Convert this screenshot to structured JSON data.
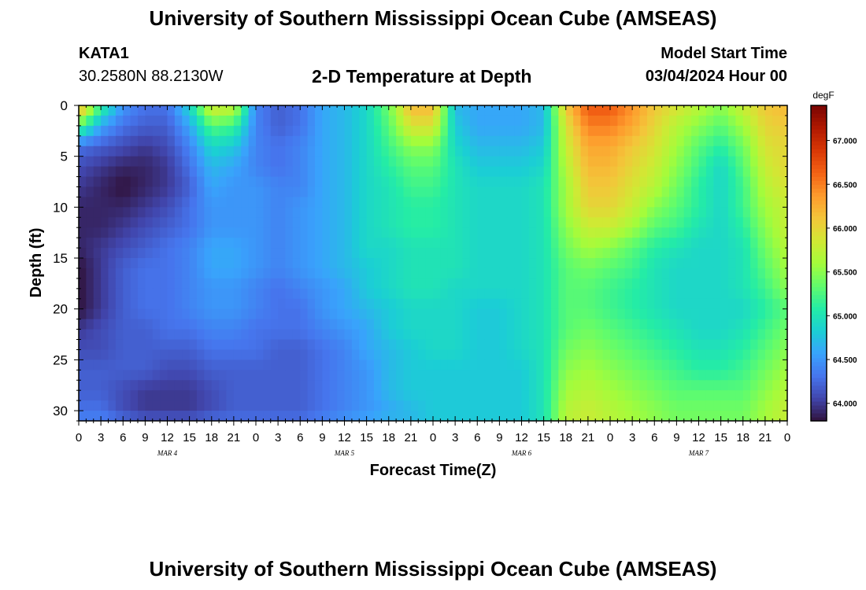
{
  "header": {
    "title": "University of Southern Mississippi Ocean Cube (AMSEAS)",
    "station_id": "KATA1",
    "station_coords": "30.2580N  88.2130W",
    "plot_title": "2-D Temperature at Depth",
    "start_label": "Model Start Time",
    "start_value": "03/04/2024 Hour 00"
  },
  "footer": {
    "title": "University of Southern Mississippi Ocean Cube (AMSEAS)"
  },
  "chart_data": {
    "type": "heatmap",
    "title": "2-D Temperature at Depth",
    "xlabel": "Forecast Time(Z)",
    "ylabel": "Depth (ft)",
    "x_range_hours": [
      0,
      96
    ],
    "y_range_ft": [
      0,
      31
    ],
    "y_reversed": true,
    "x_ticks": [
      "0",
      "3",
      "6",
      "9",
      "12",
      "15",
      "18",
      "21",
      "0",
      "3",
      "6",
      "9",
      "12",
      "15",
      "18",
      "21",
      "0",
      "3",
      "6",
      "9",
      "12",
      "15",
      "18",
      "21",
      "0",
      "3",
      "6",
      "9",
      "12",
      "15",
      "18",
      "21",
      "0"
    ],
    "day_labels": [
      {
        "label": "MAR 4",
        "hour": 12
      },
      {
        "label": "MAR 5",
        "hour": 36
      },
      {
        "label": "MAR 6",
        "hour": 60
      },
      {
        "label": "MAR 7",
        "hour": 84
      }
    ],
    "y_ticks": [
      "0",
      "5",
      "10",
      "15",
      "20",
      "25",
      "30"
    ],
    "colorbar": {
      "unit": "degF",
      "min": 63.8,
      "max": 67.4,
      "ticks": [
        "64.000",
        "64.500",
        "65.000",
        "65.500",
        "66.000",
        "66.500",
        "67.000"
      ],
      "colormap": [
        "#30123b",
        "#4145ab",
        "#4675ed",
        "#39a2fc",
        "#1bcfd4",
        "#24eca6",
        "#61fc6c",
        "#a4fc3b",
        "#d1e834",
        "#f3c63a",
        "#fe9b2d",
        "#f36315",
        "#d93806",
        "#b11901",
        "#7a0402"
      ]
    },
    "hours": [
      0,
      3,
      6,
      9,
      12,
      15,
      18,
      21,
      24,
      27,
      30,
      33,
      36,
      39,
      42,
      45,
      48,
      51,
      54,
      57,
      60,
      63,
      66,
      69,
      72,
      75,
      78,
      81,
      84,
      87,
      90,
      93,
      96
    ],
    "depths_ft": [
      0,
      2,
      4,
      6,
      8,
      10,
      12,
      14,
      16,
      18,
      20,
      22,
      24,
      26,
      28,
      30,
      31
    ],
    "values": [
      [
        66.4,
        65.2,
        64.5,
        64.3,
        64.3,
        64.9,
        65.9,
        65.8,
        64.4,
        64.2,
        64.3,
        64.6,
        64.7,
        64.9,
        65.4,
        66.2,
        66.2,
        64.7,
        64.6,
        64.6,
        64.6,
        64.7,
        66.1,
        66.7,
        66.7,
        66.4,
        66.1,
        65.9,
        65.7,
        65.5,
        65.8,
        66.1,
        66.2
      ],
      [
        65.3,
        64.6,
        64.3,
        64.2,
        64.2,
        64.6,
        65.3,
        65.2,
        64.4,
        64.2,
        64.3,
        64.6,
        64.7,
        64.9,
        65.3,
        65.9,
        65.9,
        64.8,
        64.6,
        64.6,
        64.6,
        64.7,
        65.9,
        66.5,
        66.5,
        66.3,
        66.0,
        65.7,
        65.5,
        65.3,
        65.6,
        66.0,
        66.1
      ],
      [
        64.3,
        64.2,
        64.1,
        64.0,
        64.1,
        64.4,
        64.9,
        64.8,
        64.4,
        64.3,
        64.4,
        64.6,
        64.7,
        64.9,
        65.2,
        65.5,
        65.5,
        64.9,
        64.7,
        64.7,
        64.7,
        64.8,
        65.8,
        66.3,
        66.3,
        66.1,
        65.9,
        65.6,
        65.3,
        65.1,
        65.4,
        65.9,
        66.0
      ],
      [
        64.1,
        64.0,
        63.9,
        63.9,
        64.0,
        64.3,
        64.7,
        64.6,
        64.4,
        64.3,
        64.4,
        64.6,
        64.7,
        64.9,
        65.1,
        65.3,
        65.3,
        65.0,
        64.8,
        64.8,
        64.8,
        64.9,
        65.7,
        66.2,
        66.2,
        66.0,
        65.8,
        65.5,
        65.2,
        64.9,
        65.3,
        65.8,
        66.0
      ],
      [
        64.0,
        63.9,
        63.8,
        63.9,
        64.0,
        64.2,
        64.6,
        64.5,
        64.5,
        64.4,
        64.4,
        64.6,
        64.7,
        64.9,
        65.0,
        65.2,
        65.2,
        65.0,
        64.9,
        64.9,
        64.9,
        65.0,
        65.6,
        66.1,
        66.1,
        65.9,
        65.7,
        65.4,
        65.1,
        64.9,
        65.2,
        65.7,
        65.9
      ],
      [
        63.9,
        63.9,
        63.9,
        64.0,
        64.1,
        64.3,
        64.5,
        64.5,
        64.5,
        64.4,
        64.5,
        64.6,
        64.7,
        64.9,
        65.0,
        65.1,
        65.1,
        65.0,
        64.9,
        64.9,
        64.9,
        65.0,
        65.6,
        66.0,
        66.0,
        65.8,
        65.5,
        65.3,
        65.1,
        64.9,
        65.2,
        65.6,
        65.8
      ],
      [
        63.9,
        63.9,
        64.0,
        64.1,
        64.2,
        64.3,
        64.5,
        64.5,
        64.5,
        64.4,
        64.5,
        64.6,
        64.7,
        64.9,
        65.0,
        65.1,
        65.1,
        65.0,
        64.9,
        64.9,
        64.9,
        65.0,
        65.5,
        65.8,
        65.8,
        65.6,
        65.3,
        65.2,
        65.0,
        64.9,
        65.1,
        65.5,
        65.8
      ],
      [
        63.9,
        64.0,
        64.1,
        64.2,
        64.3,
        64.4,
        64.6,
        64.6,
        64.5,
        64.4,
        64.5,
        64.6,
        64.7,
        64.9,
        64.9,
        65.0,
        65.0,
        65.0,
        64.9,
        64.9,
        64.9,
        65.0,
        65.4,
        65.6,
        65.5,
        65.3,
        65.1,
        65.0,
        64.9,
        64.9,
        65.0,
        65.4,
        65.7
      ],
      [
        63.8,
        64.0,
        64.2,
        64.3,
        64.3,
        64.4,
        64.6,
        64.6,
        64.5,
        64.4,
        64.5,
        64.6,
        64.7,
        64.8,
        64.9,
        65.0,
        65.0,
        65.0,
        64.9,
        64.9,
        64.9,
        65.0,
        65.3,
        65.4,
        65.3,
        65.2,
        65.0,
        64.9,
        64.9,
        64.9,
        65.0,
        65.3,
        65.6
      ],
      [
        63.8,
        64.0,
        64.2,
        64.3,
        64.3,
        64.4,
        64.5,
        64.5,
        64.4,
        64.3,
        64.4,
        64.5,
        64.6,
        64.8,
        64.9,
        65.0,
        65.0,
        64.9,
        64.9,
        64.9,
        64.9,
        65.0,
        65.3,
        65.3,
        65.2,
        65.1,
        65.0,
        64.9,
        64.9,
        64.9,
        65.0,
        65.2,
        65.5
      ],
      [
        63.8,
        64.0,
        64.2,
        64.3,
        64.3,
        64.4,
        64.5,
        64.5,
        64.4,
        64.3,
        64.3,
        64.5,
        64.6,
        64.7,
        64.8,
        64.9,
        64.9,
        64.9,
        64.8,
        64.8,
        64.9,
        65.0,
        65.3,
        65.3,
        65.2,
        65.1,
        65.0,
        64.9,
        64.9,
        64.9,
        64.9,
        65.1,
        65.3
      ],
      [
        64.0,
        64.1,
        64.2,
        64.2,
        64.3,
        64.3,
        64.4,
        64.4,
        64.3,
        64.3,
        64.3,
        64.4,
        64.5,
        64.6,
        64.8,
        64.9,
        64.9,
        64.9,
        64.8,
        64.8,
        64.9,
        65.0,
        65.3,
        65.4,
        65.3,
        65.2,
        65.1,
        65.0,
        64.9,
        64.9,
        65.0,
        65.2,
        65.4
      ],
      [
        64.1,
        64.1,
        64.2,
        64.2,
        64.2,
        64.2,
        64.3,
        64.3,
        64.3,
        64.2,
        64.2,
        64.3,
        64.4,
        64.6,
        64.7,
        64.8,
        64.9,
        64.9,
        64.8,
        64.8,
        64.9,
        65.0,
        65.4,
        65.5,
        65.4,
        65.3,
        65.2,
        65.1,
        65.0,
        65.0,
        65.1,
        65.3,
        65.5
      ],
      [
        64.2,
        64.2,
        64.2,
        64.2,
        64.1,
        64.1,
        64.2,
        64.2,
        64.2,
        64.2,
        64.2,
        64.3,
        64.4,
        64.5,
        64.7,
        64.8,
        64.8,
        64.8,
        64.8,
        64.8,
        64.8,
        65.0,
        65.5,
        65.6,
        65.5,
        65.4,
        65.3,
        65.2,
        65.1,
        65.1,
        65.2,
        65.4,
        65.6
      ],
      [
        64.2,
        64.2,
        64.1,
        64.0,
        64.0,
        64.0,
        64.1,
        64.2,
        64.2,
        64.2,
        64.2,
        64.3,
        64.4,
        64.5,
        64.7,
        64.8,
        64.8,
        64.8,
        64.8,
        64.8,
        64.8,
        65.0,
        65.6,
        65.7,
        65.6,
        65.5,
        65.4,
        65.3,
        65.3,
        65.3,
        65.3,
        65.5,
        65.7
      ],
      [
        64.3,
        64.3,
        64.1,
        64.0,
        64.0,
        64.0,
        64.1,
        64.2,
        64.2,
        64.2,
        64.2,
        64.3,
        64.4,
        64.5,
        64.6,
        64.7,
        64.8,
        64.8,
        64.8,
        64.8,
        64.8,
        65.0,
        65.7,
        65.8,
        65.7,
        65.6,
        65.5,
        65.4,
        65.4,
        65.4,
        65.4,
        65.6,
        65.8
      ],
      [
        64.4,
        64.4,
        64.3,
        64.2,
        64.2,
        64.2,
        64.3,
        64.3,
        64.3,
        64.3,
        64.3,
        64.4,
        64.5,
        64.6,
        64.7,
        64.7,
        64.8,
        64.8,
        64.8,
        64.8,
        64.8,
        65.0,
        65.7,
        65.8,
        65.7,
        65.6,
        65.5,
        65.4,
        65.4,
        65.4,
        65.4,
        65.6,
        65.8
      ]
    ]
  }
}
